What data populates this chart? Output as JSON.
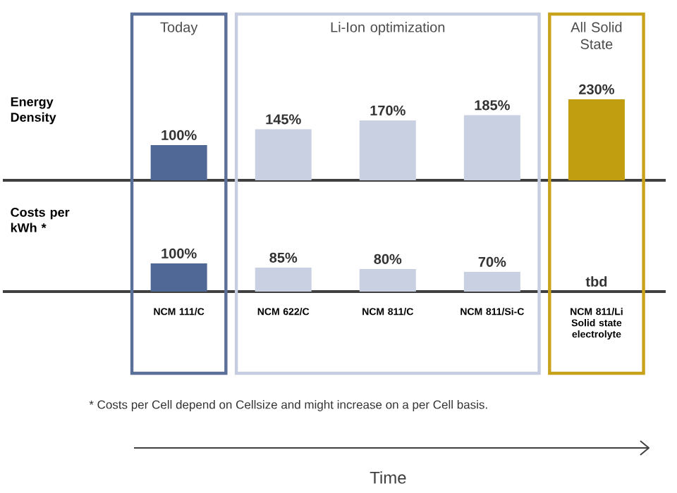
{
  "chart_data": [
    {
      "type": "bar",
      "ylabel": "Energy Density",
      "categories": [
        null,
        null,
        null,
        null,
        null
      ],
      "values": [
        100,
        145,
        170,
        185,
        230
      ],
      "value_labels": [
        "100%",
        "145%",
        "170%",
        "185%",
        "230%"
      ],
      "colors": [
        "#4f6896",
        "#c8d0e2",
        "#c8d0e2",
        "#c8d0e2",
        "#c19d10"
      ]
    },
    {
      "type": "bar",
      "ylabel": "Costs per kWh *",
      "categories": [
        "NCM 111/C",
        "NCM 622/C",
        "NCM 811/C",
        "NCM 811/Si-C",
        "NCM 811/Li Solid state electrolyte"
      ],
      "values": [
        100,
        85,
        80,
        70,
        null
      ],
      "value_labels": [
        "100%",
        "85%",
        "80%",
        "70%",
        "tbd"
      ],
      "colors": [
        "#4f6896",
        "#c8d0e2",
        "#c8d0e2",
        "#c8d0e2",
        "#c19d10"
      ],
      "xlabel": "Time",
      "annotations": [
        "Today",
        "Li-Ion optimization",
        "All Solid State",
        "* Costs per Cell depend on Cellsize and might increase on a per Cell basis."
      ]
    }
  ]
}
